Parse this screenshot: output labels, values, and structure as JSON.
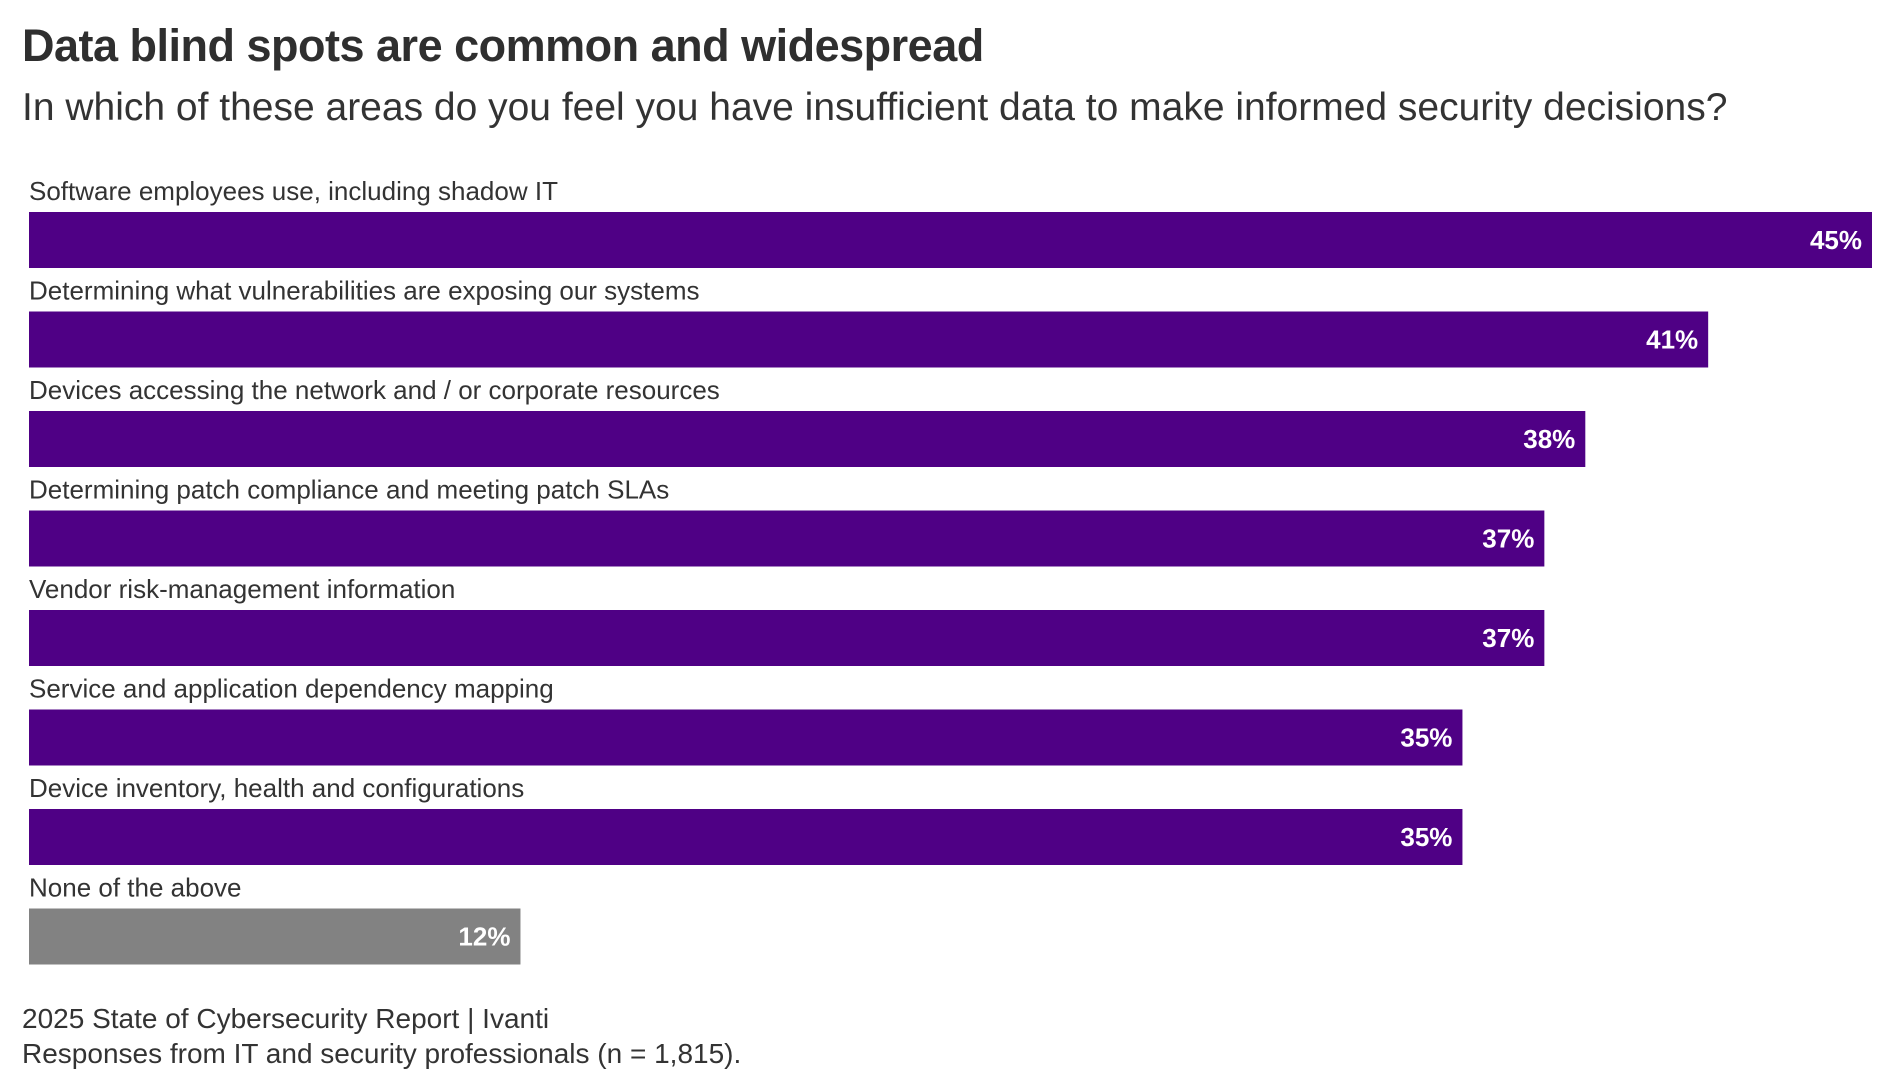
{
  "title": "Data blind spots are common and widespread",
  "subtitle": "In which of these areas do you feel you have insufficient data to make informed security decisions?",
  "footer": {
    "source": "2025 State of Cybersecurity Report | Ivanti",
    "note": "Responses from IT and security professionals (n = 1,815)."
  },
  "colors": {
    "bar": "#4f0085",
    "bar_none": "#828282",
    "bar_label": "#ffffff",
    "category_label": "#333333"
  },
  "chart_data": {
    "type": "bar",
    "orientation": "horizontal",
    "categories": [
      "Software employees use, including shadow IT",
      "Determining what vulnerabilities are exposing our systems",
      "Devices accessing the network and / or corporate resources",
      "Determining patch compliance and meeting patch SLAs",
      "Vendor risk-management information",
      "Service and application dependency mapping",
      "Device inventory, health and configurations",
      "None of the above"
    ],
    "values": [
      45,
      41,
      38,
      37,
      37,
      35,
      35,
      12
    ],
    "value_labels": [
      "45%",
      "41%",
      "38%",
      "37%",
      "37%",
      "35%",
      "35%",
      "12%"
    ],
    "highlight": [
      false,
      false,
      false,
      false,
      false,
      false,
      false,
      true
    ],
    "xlim": [
      0,
      45
    ],
    "grid": false,
    "legend": "none"
  }
}
